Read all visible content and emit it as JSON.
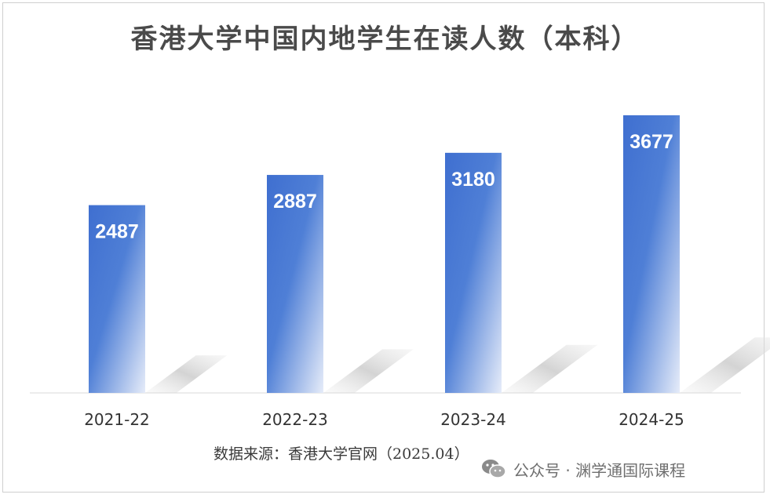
{
  "chart_data": {
    "type": "bar",
    "title": "香港大学中国内地学生在读人数（本科）",
    "categories": [
      "2021-22",
      "2022-23",
      "2023-24",
      "2024-25"
    ],
    "values": [
      2487,
      2887,
      3180,
      3677
    ],
    "data_labels": [
      "2487",
      "2887",
      "3180",
      "3677"
    ],
    "xlabel": "",
    "ylabel": "",
    "ylim": [
      0,
      4000
    ],
    "grid": false,
    "legend": "none",
    "bar_gradient": [
      "#3f6fd0",
      "#dfe8f8"
    ]
  },
  "source_note": "数据来源：香港大学官网（2025.04）",
  "watermark": {
    "icon": "wechat-icon",
    "text": "公众号 · 渊学通国际课程"
  }
}
